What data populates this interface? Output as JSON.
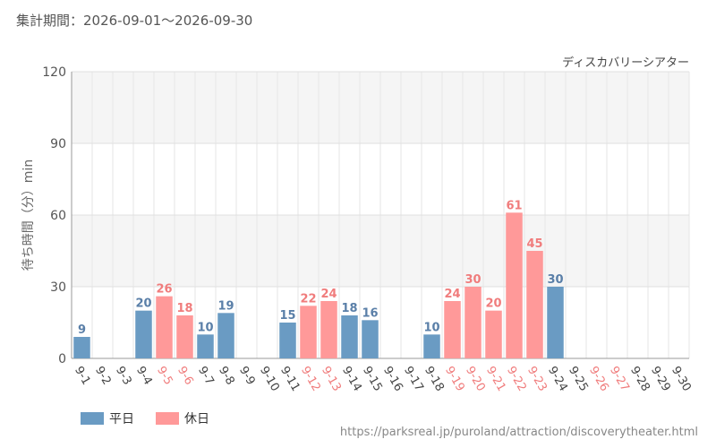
{
  "header": {
    "period": "集計期間：2026-09-01～2026-09-30"
  },
  "source_url": "https://parksreal.jp/puroland/attraction/discoverytheater.html",
  "chart_data": {
    "type": "bar",
    "title": "ディスカバリーシアター",
    "ylabel": "待ち時間（分）min",
    "ylim": [
      0,
      120
    ],
    "yticks": [
      0,
      30,
      60,
      90,
      120
    ],
    "grid": true,
    "legend_position": "bottom-left",
    "legend": [
      {
        "key": "weekday",
        "label": "平日",
        "color": "#6a9bc3"
      },
      {
        "key": "holiday",
        "label": "休日",
        "color": "#ff9999"
      }
    ],
    "label_colors": {
      "weekday": "#5a7fa8",
      "holiday": "#f07c7c",
      "tick": "#444444",
      "tick_holiday": "#f07c7c"
    },
    "categories": [
      "9-1",
      "9-2",
      "9-3",
      "9-4",
      "9-5",
      "9-6",
      "9-7",
      "9-8",
      "9-9",
      "9-10",
      "9-11",
      "9-12",
      "9-13",
      "9-14",
      "9-15",
      "9-16",
      "9-17",
      "9-18",
      "9-19",
      "9-20",
      "9-21",
      "9-22",
      "9-23",
      "9-24",
      "9-25",
      "9-26",
      "9-27",
      "9-28",
      "9-29",
      "9-30"
    ],
    "day_type": [
      "weekday",
      "weekday",
      "weekday",
      "weekday",
      "holiday",
      "holiday",
      "weekday",
      "weekday",
      "weekday",
      "weekday",
      "weekday",
      "holiday",
      "holiday",
      "weekday",
      "weekday",
      "weekday",
      "weekday",
      "weekday",
      "holiday",
      "holiday",
      "holiday",
      "holiday",
      "holiday",
      "weekday",
      "weekday",
      "holiday",
      "holiday",
      "weekday",
      "weekday",
      "weekday"
    ],
    "values": [
      9,
      null,
      null,
      20,
      26,
      18,
      10,
      19,
      null,
      null,
      15,
      22,
      24,
      18,
      16,
      null,
      null,
      10,
      24,
      30,
      20,
      61,
      45,
      30,
      null,
      null,
      null,
      null,
      null,
      null
    ]
  }
}
